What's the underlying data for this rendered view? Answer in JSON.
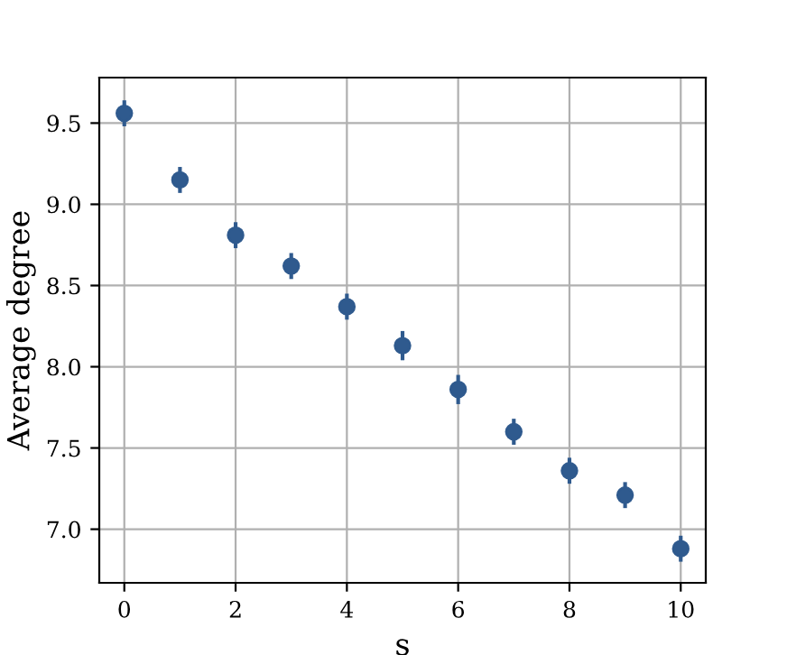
{
  "chart_data": {
    "type": "scatter",
    "xlabel": "s",
    "ylabel": "Average degree",
    "x": [
      0,
      1,
      2,
      3,
      4,
      5,
      6,
      7,
      8,
      9,
      10
    ],
    "values": [
      9.56,
      9.15,
      8.81,
      8.62,
      8.37,
      8.13,
      7.86,
      7.6,
      7.36,
      7.21,
      6.88
    ],
    "errors": [
      0.08,
      0.08,
      0.08,
      0.08,
      0.08,
      0.09,
      0.09,
      0.08,
      0.08,
      0.08,
      0.08
    ],
    "color": "#2f5a8e",
    "marker": "circle",
    "xlim": [
      -0.45,
      10.45
    ],
    "ylim": [
      6.67,
      9.78
    ],
    "xticks": [
      0,
      2,
      4,
      6,
      8,
      10
    ],
    "yticks": [
      {
        "value": 7.0,
        "label": "7.0"
      },
      {
        "value": 7.5,
        "label": "7.5"
      },
      {
        "value": 8.0,
        "label": "8.0"
      },
      {
        "value": 8.5,
        "label": "8.5"
      },
      {
        "value": 9.0,
        "label": "9.0"
      },
      {
        "value": 9.5,
        "label": "9.5"
      }
    ],
    "grid": true
  }
}
